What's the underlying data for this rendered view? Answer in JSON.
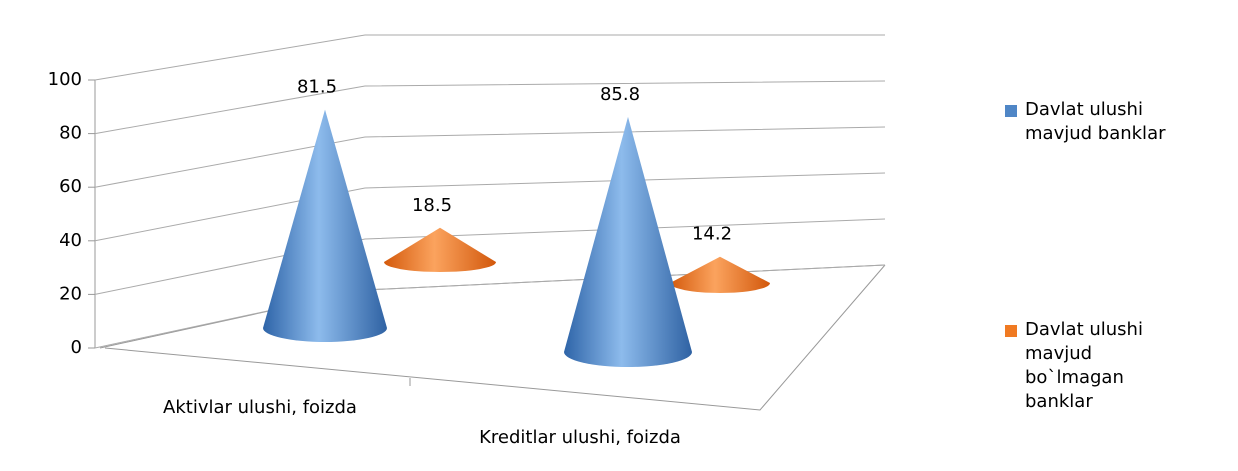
{
  "chart_data": {
    "type": "cone3d",
    "categories": [
      "Aktivlar ulushi, foizda",
      "Kreditlar ulushi, foizda"
    ],
    "series": [
      {
        "name": "Davlat ulushi mavjud banklar",
        "color": "#4f86c6",
        "values": [
          81.5,
          85.8
        ]
      },
      {
        "name": "Davlat ulushi mavjud bo`lmagan banklar",
        "color": "#f07a22",
        "values": [
          18.5,
          14.2
        ]
      }
    ],
    "ylim": [
      0,
      100
    ],
    "yticks": [
      0,
      20,
      40,
      60,
      80,
      100
    ],
    "grid": true,
    "legend": "right"
  }
}
